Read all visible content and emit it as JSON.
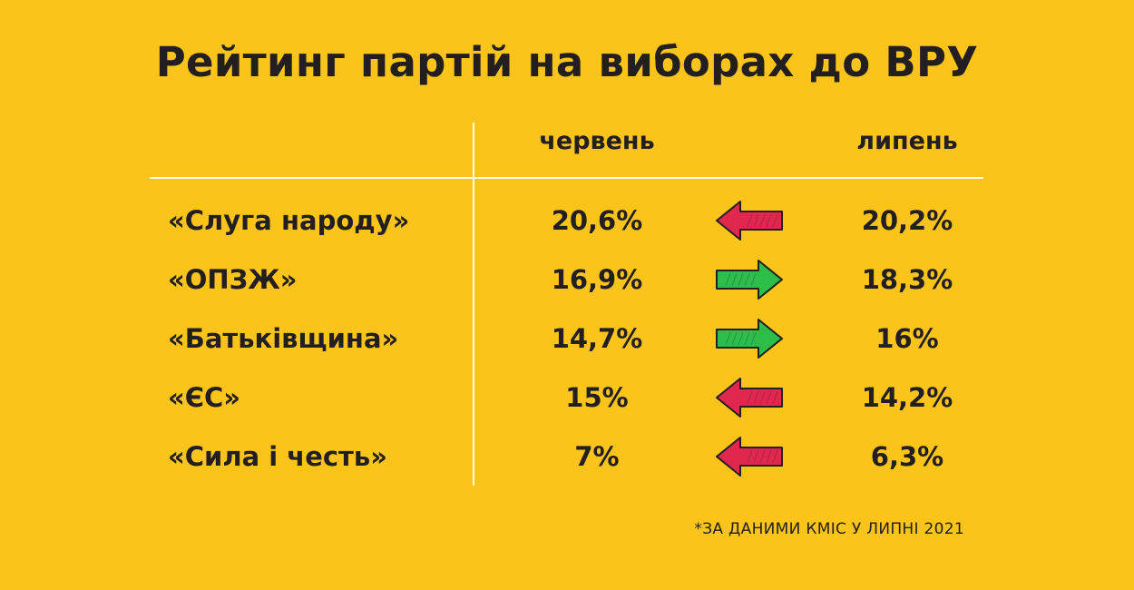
{
  "title": "Рейтинг партій на виборах до ВРУ",
  "columns": {
    "june": "червень",
    "july": "липень"
  },
  "rows": [
    {
      "party": "«Слуга народу»",
      "june": "20,6%",
      "july": "20,2%",
      "trend": "down",
      "trend_icon": "arrow-left-icon",
      "color": "#E0284F"
    },
    {
      "party": "«ОПЗЖ»",
      "june": "16,9%",
      "july": "18,3%",
      "trend": "up",
      "trend_icon": "arrow-right-icon",
      "color": "#2DBE4A"
    },
    {
      "party": "«Батьківщина»",
      "june": "14,7%",
      "july": "16%",
      "trend": "up",
      "trend_icon": "arrow-right-icon",
      "color": "#2DBE4A"
    },
    {
      "party": "«ЄС»",
      "june": "15%",
      "july": "14,2%",
      "trend": "down",
      "trend_icon": "arrow-left-icon",
      "color": "#E0284F"
    },
    {
      "party": "«Сила і честь»",
      "june": "7%",
      "july": "6,3%",
      "trend": "down",
      "trend_icon": "arrow-left-icon",
      "color": "#E0284F"
    }
  ],
  "footnote": "*ЗА ДАНИМИ КМІС У ЛИПНІ 2021",
  "chart_data": {
    "type": "table",
    "title": "Рейтинг партій на виборах до ВРУ",
    "categories": [
      "«Слуга народу»",
      "«ОПЗЖ»",
      "«Батьківщина»",
      "«ЄС»",
      "«Сила і честь»"
    ],
    "series": [
      {
        "name": "червень",
        "values": [
          20.6,
          16.9,
          14.7,
          15,
          7
        ]
      },
      {
        "name": "липень",
        "values": [
          20.2,
          18.3,
          16,
          14.2,
          6.3
        ]
      }
    ],
    "background": "#FBC41B",
    "up_color": "#2DBE4A",
    "down_color": "#E0284F"
  }
}
